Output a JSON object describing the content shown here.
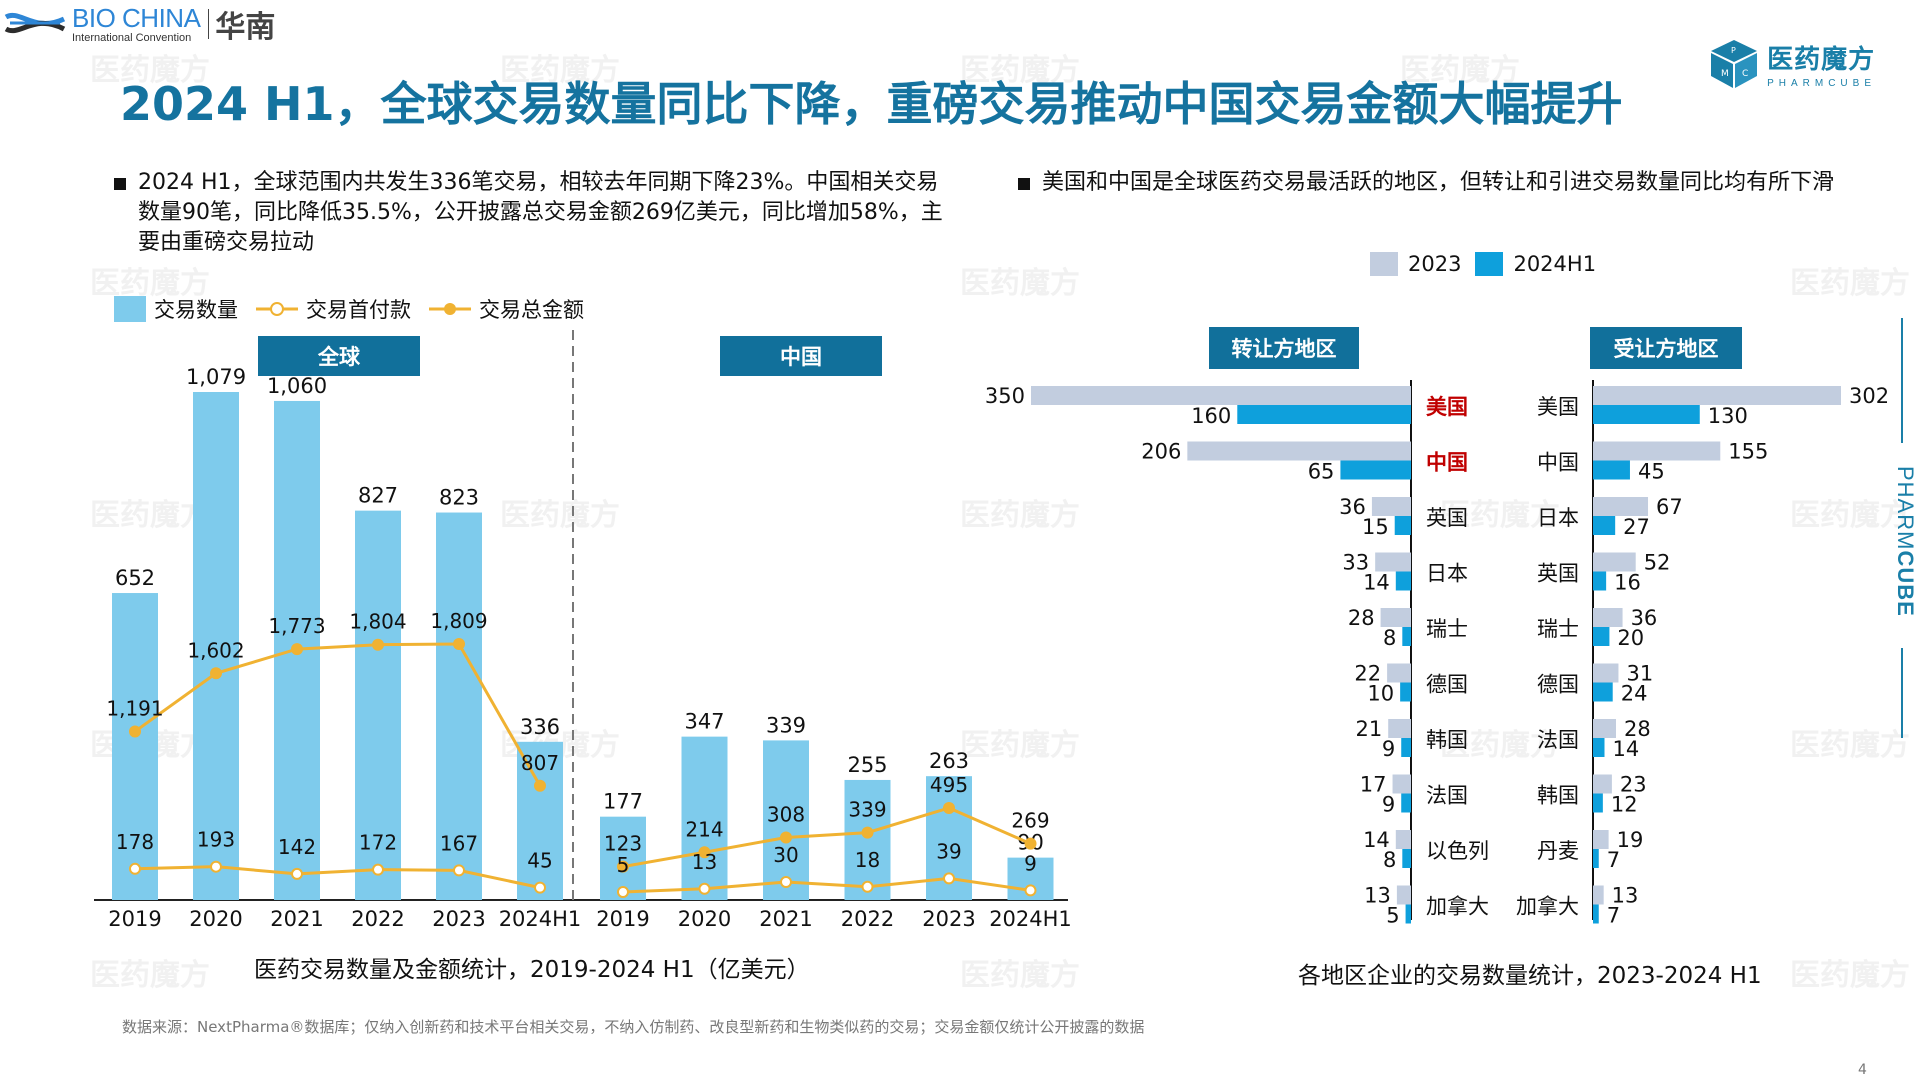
{
  "header": {
    "bio_logo": {
      "name": "BIO CHINA",
      "subtitle": "International Convention",
      "region": "华南"
    },
    "pharmcube_logo": {
      "cn": "医药魔方",
      "en": "PHARMCUBE"
    },
    "title": "2024 H1，全球交易数量同比下降，重磅交易推动中国交易金额大幅提升"
  },
  "left_section": {
    "bullet": "2024 H1，全球范围内共发生336笔交易，相较去年同期下降23%。中国相关交易数量90笔，同比降低35.5%，公开披露总交易金额269亿美元，同比增加58%，主要由重磅交易拉动",
    "legend": {
      "bars": "交易数量",
      "upfront": "交易首付款",
      "total": "交易总金额"
    },
    "caption": "医药交易数量及金额统计，2019-2024 H1（亿美元）"
  },
  "right_section": {
    "bullet": "美国和中国是全球医药交易最活跃的地区，但转让和引进交易数量同比均有所下滑",
    "legend": {
      "y2023": "2023",
      "y2024": "2024H1"
    },
    "caption": "各地区企业的交易数量统计，2023-2024 H1"
  },
  "footer": {
    "source": "数据来源：NextPharma®数据库；仅纳入创新药和技术平台相关交易，不纳入仿制药、改良型新药和生物类似药的交易；交易金额仅统计公开披露的数据",
    "page_number": "4"
  },
  "side_brand": {
    "thin": "PHARM",
    "bold": "CUBE"
  },
  "colors": {
    "title": "#15739f",
    "panel_header": "#11709b",
    "bar": "#7ecbec",
    "line": "#f0b232",
    "bar_2023": "#c2cddf",
    "bar_2024": "#0ea0dc",
    "highlight": "#c00000"
  },
  "chart_data": [
    {
      "type": "bar",
      "title": "医药交易数量及金额统计，2019-2024 H1（亿美元）",
      "panels": [
        {
          "name": "全球",
          "categories": [
            "2019",
            "2020",
            "2021",
            "2022",
            "2023",
            "2024H1"
          ],
          "series": [
            {
              "name": "交易数量",
              "kind": "bar",
              "values": [
                652,
                1079,
                1060,
                827,
                823,
                336
              ]
            },
            {
              "name": "交易首付款",
              "kind": "line",
              "values": [
                178,
                193,
                142,
                172,
                167,
                45
              ]
            },
            {
              "name": "交易总金额",
              "kind": "line",
              "values": [
                1191,
                1602,
                1773,
                1804,
                1809,
                807
              ]
            }
          ]
        },
        {
          "name": "中国",
          "categories": [
            "2019",
            "2020",
            "2021",
            "2022",
            "2023",
            "2024H1"
          ],
          "series": [
            {
              "name": "交易数量",
              "kind": "bar",
              "values": [
                177,
                347,
                339,
                255,
                263,
                90
              ]
            },
            {
              "name": "交易首付款",
              "kind": "line",
              "values": [
                5,
                13,
                30,
                18,
                39,
                9
              ]
            },
            {
              "name": "交易总金额",
              "kind": "line",
              "values": [
                123,
                214,
                308,
                339,
                495,
                269
              ]
            }
          ]
        }
      ],
      "legend": [
        "交易数量",
        "交易首付款",
        "交易总金额"
      ],
      "legend_position": "top-left",
      "grid": false
    },
    {
      "type": "bar",
      "orientation": "horizontal-butterfly",
      "title": "各地区企业的交易数量统计，2023-2024 H1",
      "legend": [
        "2023",
        "2024H1"
      ],
      "legend_position": "top",
      "panels": [
        {
          "name": "转让方地区",
          "categories": [
            "美国",
            "中国",
            "英国",
            "日本",
            "瑞士",
            "德国",
            "韩国",
            "法国",
            "以色列",
            "加拿大"
          ],
          "highlight": [
            "美国",
            "中国"
          ],
          "series": [
            {
              "name": "2023",
              "values": [
                350,
                206,
                36,
                33,
                28,
                22,
                21,
                17,
                14,
                13
              ]
            },
            {
              "name": "2024H1",
              "values": [
                160,
                65,
                15,
                14,
                8,
                10,
                9,
                9,
                8,
                5
              ]
            }
          ]
        },
        {
          "name": "受让方地区",
          "categories": [
            "美国",
            "中国",
            "日本",
            "英国",
            "瑞士",
            "德国",
            "法国",
            "韩国",
            "丹麦",
            "加拿大"
          ],
          "series": [
            {
              "name": "2023",
              "values": [
                302,
                155,
                67,
                52,
                36,
                31,
                28,
                23,
                19,
                13
              ]
            },
            {
              "name": "2024H1",
              "values": [
                130,
                45,
                27,
                16,
                20,
                24,
                14,
                12,
                7,
                7
              ]
            }
          ]
        }
      ]
    }
  ]
}
